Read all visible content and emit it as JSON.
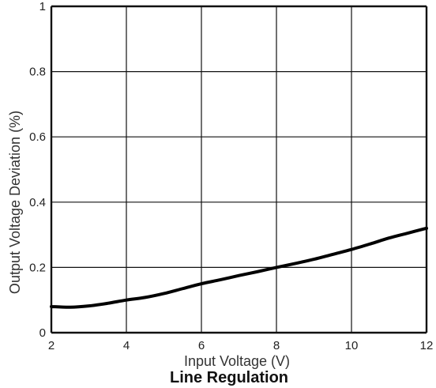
{
  "chart_data": {
    "type": "line",
    "title": "Line Regulation",
    "xlabel": "Input Voltage (V)",
    "ylabel": "Output Voltage Deviation (%)",
    "xlim": [
      2,
      12
    ],
    "ylim": [
      0,
      1
    ],
    "xticks": [
      2,
      4,
      6,
      8,
      10,
      12
    ],
    "yticks": [
      0,
      0.2,
      0.4,
      0.6,
      0.8,
      1
    ],
    "xtick_labels": [
      "2",
      "4",
      "6",
      "8",
      "10",
      "12"
    ],
    "ytick_labels": [
      "0",
      "0.2",
      "0.4",
      "0.6",
      "0.8",
      "1"
    ],
    "grid": true,
    "series": [
      {
        "x": [
          2,
          2.5,
          3,
          3.5,
          4,
          4.5,
          5,
          5.5,
          6,
          6.5,
          7,
          7.5,
          8,
          8.5,
          9,
          9.5,
          10,
          10.5,
          11,
          11.5,
          12
        ],
        "y": [
          0.08,
          0.078,
          0.082,
          0.09,
          0.1,
          0.108,
          0.12,
          0.135,
          0.15,
          0.162,
          0.175,
          0.187,
          0.2,
          0.212,
          0.225,
          0.24,
          0.255,
          0.272,
          0.29,
          0.305,
          0.32
        ]
      }
    ]
  },
  "colors": {
    "grid": "#111111",
    "line": "#000000",
    "background": "#ffffff"
  }
}
